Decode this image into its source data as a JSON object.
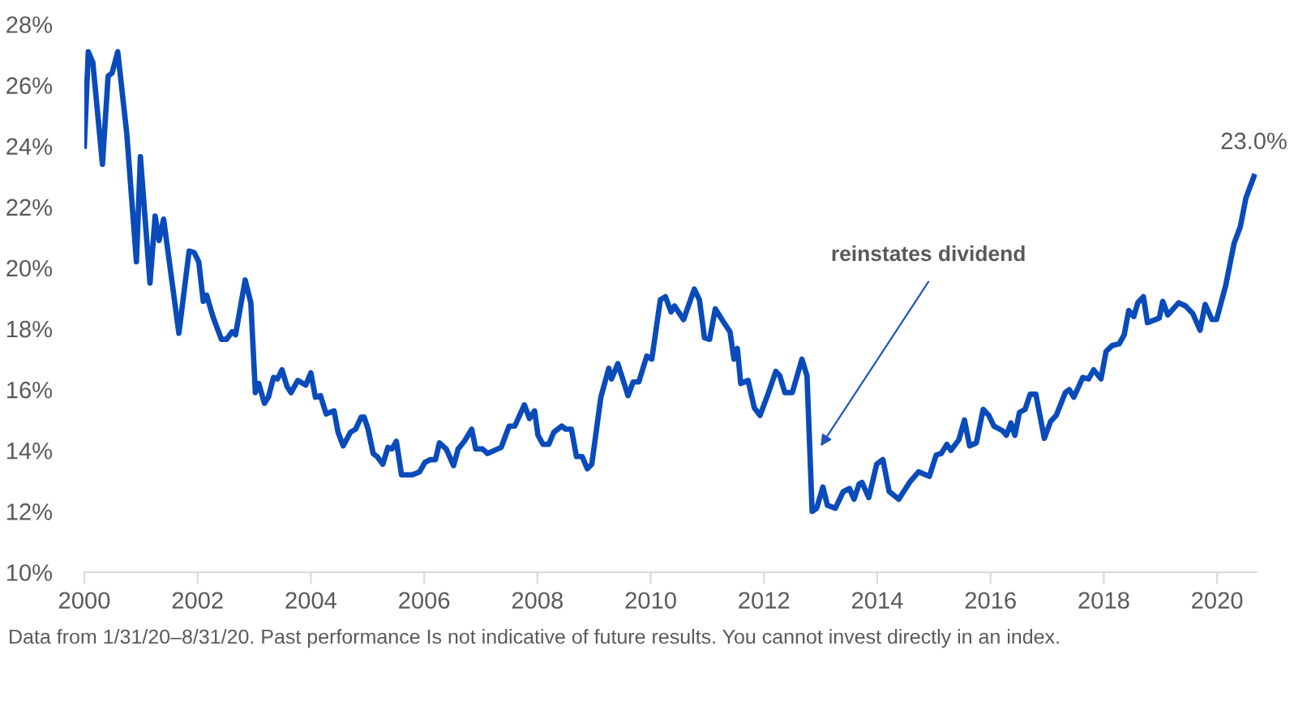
{
  "chart_data": {
    "type": "line",
    "xlim": [
      2000,
      2020.7
    ],
    "xticks": [
      2000,
      2002,
      2004,
      2006,
      2008,
      2010,
      2012,
      2014,
      2016,
      2018,
      2020
    ],
    "ylim": [
      10,
      28
    ],
    "yticks": [
      {
        "value": 10,
        "label": "10%"
      },
      {
        "value": 12,
        "label": "12%"
      },
      {
        "value": 14,
        "label": "14%"
      },
      {
        "value": 16,
        "label": "16%"
      },
      {
        "value": 18,
        "label": "18%"
      },
      {
        "value": 20,
        "label": "20%"
      },
      {
        "value": 22,
        "label": "22%"
      },
      {
        "value": 24,
        "label": "24%"
      },
      {
        "value": 26,
        "label": "26%"
      },
      {
        "value": 28,
        "label": "28%"
      }
    ],
    "grid": false,
    "legend": false,
    "marker": "none",
    "line_style": "solid",
    "series": [
      {
        "color": "#0a4bbb",
        "x": [
          2000.0,
          2000.07,
          2000.15,
          2000.32,
          2000.42,
          2000.49,
          2000.59,
          2000.75,
          2000.92,
          2000.99,
          2001.16,
          2001.25,
          2001.32,
          2001.4,
          2001.67,
          2001.85,
          2001.94,
          2002.02,
          2002.1,
          2002.16,
          2002.27,
          2002.42,
          2002.51,
          2002.61,
          2002.67,
          2002.84,
          2002.94,
          2003.02,
          2003.08,
          2003.18,
          2003.25,
          2003.34,
          2003.41,
          2003.49,
          2003.58,
          2003.65,
          2003.77,
          2003.91,
          2004.0,
          2004.08,
          2004.17,
          2004.27,
          2004.41,
          2004.48,
          2004.57,
          2004.7,
          2004.79,
          2004.89,
          2004.94,
          2005.01,
          2005.1,
          2005.17,
          2005.27,
          2005.36,
          2005.43,
          2005.51,
          2005.6,
          2005.79,
          2005.92,
          2006.01,
          2006.11,
          2006.2,
          2006.27,
          2006.39,
          2006.52,
          2006.6,
          2006.71,
          2006.84,
          2006.91,
          2007.03,
          2007.12,
          2007.36,
          2007.5,
          2007.6,
          2007.77,
          2007.86,
          2007.95,
          2008.01,
          2008.1,
          2008.2,
          2008.29,
          2008.43,
          2008.5,
          2008.6,
          2008.69,
          2008.79,
          2008.88,
          2008.96,
          2009.12,
          2009.26,
          2009.31,
          2009.42,
          2009.6,
          2009.69,
          2009.79,
          2009.93,
          2010.02,
          2010.17,
          2010.26,
          2010.36,
          2010.42,
          2010.58,
          2010.77,
          2010.86,
          2010.95,
          2011.04,
          2011.14,
          2011.31,
          2011.4,
          2011.47,
          2011.53,
          2011.59,
          2011.72,
          2011.83,
          2011.93,
          2012.07,
          2012.21,
          2012.28,
          2012.37,
          2012.5,
          2012.67,
          2012.76,
          2012.85,
          2012.93,
          2013.04,
          2013.12,
          2013.26,
          2013.4,
          2013.51,
          2013.59,
          2013.68,
          2013.73,
          2013.85,
          2013.99,
          2014.1,
          2014.21,
          2014.38,
          2014.57,
          2014.73,
          2014.92,
          2015.04,
          2015.13,
          2015.23,
          2015.3,
          2015.44,
          2015.54,
          2015.63,
          2015.75,
          2015.87,
          2015.97,
          2016.06,
          2016.21,
          2016.28,
          2016.36,
          2016.43,
          2016.51,
          2016.61,
          2016.7,
          2016.8,
          2016.95,
          2017.06,
          2017.16,
          2017.32,
          2017.39,
          2017.47,
          2017.63,
          2017.73,
          2017.82,
          2017.95,
          2018.04,
          2018.15,
          2018.27,
          2018.36,
          2018.44,
          2018.53,
          2018.6,
          2018.7,
          2018.77,
          2018.91,
          2018.98,
          2019.04,
          2019.13,
          2019.32,
          2019.44,
          2019.57,
          2019.7,
          2019.79,
          2019.91,
          2019.99,
          2020.15,
          2020.3,
          2020.41,
          2020.51,
          2020.65
        ],
        "values": [
          24.0,
          27.1,
          26.75,
          23.4,
          26.3,
          26.4,
          27.1,
          24.4,
          20.2,
          23.65,
          19.5,
          21.7,
          20.9,
          21.6,
          17.85,
          20.55,
          20.5,
          20.2,
          18.9,
          19.1,
          18.4,
          17.65,
          17.65,
          17.9,
          17.8,
          19.6,
          18.85,
          15.9,
          16.2,
          15.55,
          15.75,
          16.4,
          16.35,
          16.65,
          16.1,
          15.9,
          16.3,
          16.15,
          16.55,
          15.75,
          15.8,
          15.2,
          15.3,
          14.6,
          14.15,
          14.6,
          14.7,
          15.1,
          15.1,
          14.7,
          13.9,
          13.8,
          13.55,
          14.1,
          14.05,
          14.3,
          13.2,
          13.2,
          13.3,
          13.6,
          13.7,
          13.7,
          14.25,
          14.05,
          13.5,
          14.05,
          14.3,
          14.7,
          14.05,
          14.05,
          13.9,
          14.1,
          14.8,
          14.8,
          15.5,
          15.05,
          15.3,
          14.5,
          14.2,
          14.2,
          14.6,
          14.8,
          14.7,
          14.7,
          13.8,
          13.8,
          13.4,
          13.55,
          15.75,
          16.7,
          16.35,
          16.85,
          15.8,
          16.25,
          16.25,
          17.1,
          17.0,
          18.95,
          19.05,
          18.55,
          18.75,
          18.3,
          19.3,
          18.95,
          17.7,
          17.65,
          18.65,
          18.15,
          17.9,
          17.0,
          17.35,
          16.2,
          16.3,
          15.4,
          15.15,
          15.85,
          16.6,
          16.45,
          15.9,
          15.9,
          17.0,
          16.45,
          12.0,
          12.1,
          12.8,
          12.2,
          12.1,
          12.65,
          12.75,
          12.4,
          12.9,
          12.95,
          12.45,
          13.55,
          13.7,
          12.65,
          12.4,
          12.95,
          13.3,
          13.15,
          13.85,
          13.9,
          14.2,
          14.0,
          14.35,
          15.0,
          14.15,
          14.25,
          15.35,
          15.15,
          14.8,
          14.65,
          14.5,
          14.9,
          14.5,
          15.25,
          15.35,
          15.85,
          15.85,
          14.4,
          14.95,
          15.15,
          15.9,
          16.0,
          15.75,
          16.4,
          16.35,
          16.65,
          16.35,
          17.25,
          17.45,
          17.5,
          17.8,
          18.6,
          18.4,
          18.85,
          19.05,
          18.2,
          18.3,
          18.35,
          18.9,
          18.45,
          18.85,
          18.75,
          18.5,
          17.95,
          18.8,
          18.3,
          18.3,
          19.4,
          20.8,
          21.35,
          22.3,
          23.0
        ]
      }
    ],
    "annotations": [
      {
        "text": "23.0%",
        "x": 2020.65,
        "y": 23.0
      },
      "reinstates dividend",
      "Data from 1/31/20–8/31/20. Past performance Is not indicative of future results. You cannot invest directly in an index."
    ]
  }
}
